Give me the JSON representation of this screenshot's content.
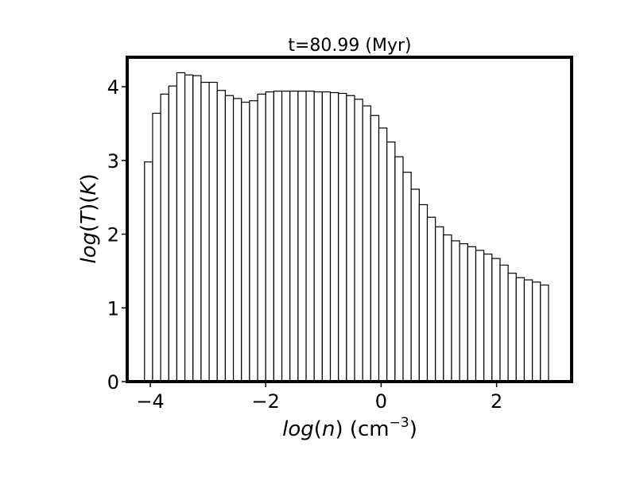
{
  "chart_data": {
    "type": "bar",
    "title": "t=80.99 (Myr)",
    "xlabel": {
      "func": "log",
      "open": "(",
      "var": "n",
      "close": ")",
      "unit_prefix": " (cm",
      "unit_exp": "−3",
      "unit_suffix": ")"
    },
    "ylabel": {
      "func1": "log",
      "open1": "(",
      "var1": "T",
      "close1": ")",
      "open2": "(",
      "var2": "K",
      "close2": ")"
    },
    "xlim": [
      -4.4,
      3.3
    ],
    "ylim": [
      0,
      4.4
    ],
    "xticks": [
      -4,
      -2,
      0,
      2
    ],
    "xtick_labels": [
      "−4",
      "−2",
      "0",
      "2"
    ],
    "yticks": [
      0,
      1,
      2,
      3,
      4
    ],
    "ytick_labels": [
      "0",
      "1",
      "2",
      "3",
      "4"
    ],
    "bin_start": -4.1,
    "bin_width": 0.14,
    "values": [
      2.98,
      3.64,
      3.9,
      4.01,
      4.19,
      4.16,
      4.15,
      4.06,
      4.06,
      3.95,
      3.88,
      3.84,
      3.79,
      3.81,
      3.9,
      3.93,
      3.94,
      3.94,
      3.94,
      3.94,
      3.94,
      3.93,
      3.93,
      3.92,
      3.91,
      3.88,
      3.83,
      3.74,
      3.61,
      3.44,
      3.25,
      3.05,
      2.84,
      2.61,
      2.4,
      2.23,
      2.1,
      1.99,
      1.91,
      1.87,
      1.83,
      1.78,
      1.73,
      1.67,
      1.58,
      1.47,
      1.41,
      1.38,
      1.35,
      1.31
    ]
  }
}
